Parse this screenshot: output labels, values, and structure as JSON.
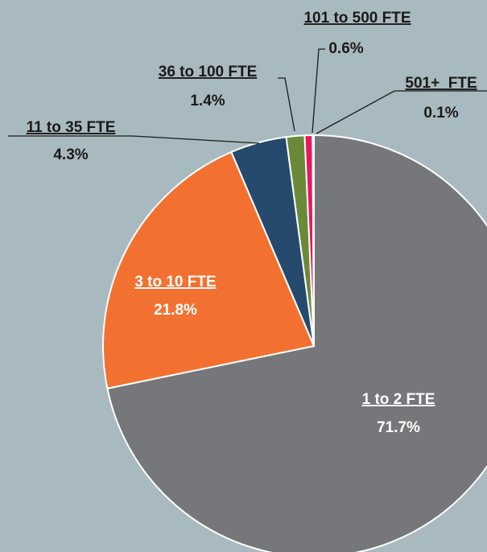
{
  "chart_data": {
    "type": "pie",
    "categories": [
      "1 to 2 FTE",
      "3 to 10 FTE",
      "11 to 35 FTE",
      "36 to 100 FTE",
      "101 to 500 FTE",
      "501+  FTE"
    ],
    "values": [
      71.7,
      21.8,
      4.3,
      1.4,
      0.6,
      0.1
    ],
    "value_labels": [
      "71.7%",
      "21.8%",
      "4.3%",
      "1.4%",
      "0.6%",
      "0.1%"
    ],
    "colors": [
      "#76777b",
      "#f37130",
      "#264a6e",
      "#6a8a3a",
      "#e8175d",
      "#a9c4e0"
    ]
  }
}
